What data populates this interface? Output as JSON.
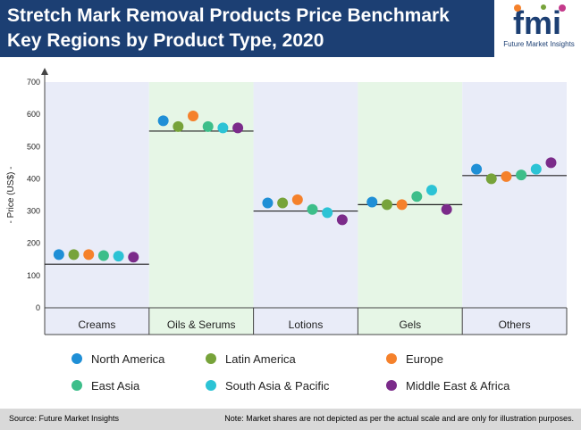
{
  "header": {
    "title_line1": "Stretch Mark Removal Products Price Benchmark",
    "title_line2": "Key Regions by Product Type, 2020"
  },
  "logo": {
    "text": "fmi",
    "caption": "Future Market Insights"
  },
  "footer": {
    "source": "Source: Future Market Insights",
    "note": "Note: Market shares are not depicted as per the actual scale and are only for illustration purposes."
  },
  "colors": {
    "header_bg": "#1c3f73",
    "band_even": "#e9ecf8",
    "band_odd": "#e6f6e6",
    "North America": "#1f8fd6",
    "Latin America": "#77a33a",
    "Europe": "#f5812b",
    "East Asia": "#3dbe8a",
    "South Asia & Pacific": "#2cc3d5",
    "Middle East & Africa": "#7b2b8a"
  },
  "chart_data": {
    "type": "scatter",
    "title": "",
    "xlabel": "",
    "ylabel": "- Price (US$) -",
    "ylim": [
      0,
      700
    ],
    "yticks": [
      0,
      100,
      200,
      300,
      400,
      500,
      600,
      700
    ],
    "grid": false,
    "legend_position": "bottom",
    "categories": [
      "Creams",
      "Oils & Serums",
      "Lotions",
      "Gels",
      "Others"
    ],
    "benchmarks": [
      135,
      548,
      300,
      320,
      410
    ],
    "series": [
      {
        "name": "North America",
        "values": [
          165,
          580,
          325,
          328,
          430
        ]
      },
      {
        "name": "Latin America",
        "values": [
          165,
          562,
          325,
          320,
          400
        ]
      },
      {
        "name": "Europe",
        "values": [
          165,
          595,
          335,
          320,
          407
        ]
      },
      {
        "name": "East Asia",
        "values": [
          162,
          562,
          305,
          345,
          412
        ]
      },
      {
        "name": "South Asia & Pacific",
        "values": [
          160,
          558,
          295,
          365,
          430
        ]
      },
      {
        "name": "Middle East & Africa",
        "values": [
          157,
          558,
          273,
          305,
          450
        ]
      }
    ]
  }
}
